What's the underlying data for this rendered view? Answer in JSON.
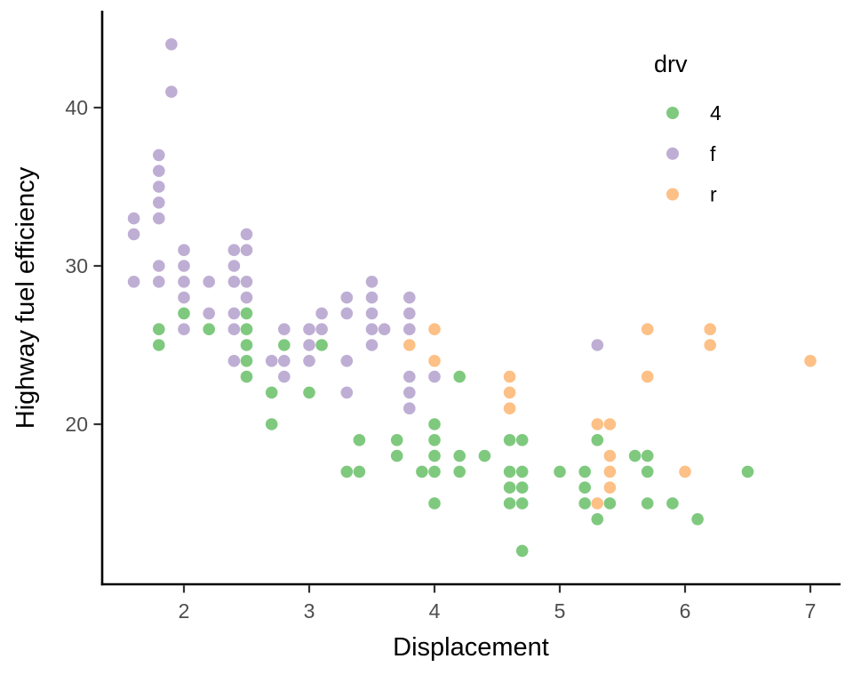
{
  "figure": {
    "background_color": "#ffffff",
    "axis_line_color": "#000000",
    "tick_mark_color": "#333333",
    "tick_label_color": "#4d4d4d",
    "x_axis_label": "Displacement",
    "y_axis_label": "Highway fuel efficiency"
  },
  "legend": {
    "title": "drv",
    "items": [
      {
        "label": "4",
        "color": "#7FC97F"
      },
      {
        "label": "f",
        "color": "#BEAED4"
      },
      {
        "label": "r",
        "color": "#FDC086"
      }
    ]
  },
  "chart_data": {
    "type": "scatter",
    "title": "",
    "xlabel": "Displacement",
    "ylabel": "Highway fuel efficiency",
    "legend_title": "drv",
    "xlim": [
      1.35,
      7.24
    ],
    "ylim": [
      9.9,
      46.0
    ],
    "x_ticks": [
      2,
      3,
      4,
      5,
      6,
      7
    ],
    "y_ticks": [
      20,
      30,
      40
    ],
    "grid": false,
    "legend_position": "top-right-inside",
    "point_color_4": "#7FC97F",
    "point_color_f": "#BEAED4",
    "point_color_r": "#FDC086",
    "series": [
      {
        "name": "f",
        "color": "#BEAED4",
        "points": [
          [
            1.6,
            33
          ],
          [
            1.6,
            32
          ],
          [
            1.6,
            29
          ],
          [
            1.8,
            37
          ],
          [
            1.8,
            36
          ],
          [
            1.8,
            35
          ],
          [
            1.8,
            34
          ],
          [
            1.8,
            33
          ],
          [
            1.8,
            30
          ],
          [
            1.8,
            29
          ],
          [
            1.9,
            44
          ],
          [
            1.9,
            41
          ],
          [
            2.0,
            31
          ],
          [
            2.0,
            30
          ],
          [
            2.0,
            29
          ],
          [
            2.0,
            28
          ],
          [
            2.0,
            26
          ],
          [
            2.2,
            29
          ],
          [
            2.2,
            27
          ],
          [
            2.4,
            31
          ],
          [
            2.4,
            30
          ],
          [
            2.4,
            29
          ],
          [
            2.4,
            27
          ],
          [
            2.4,
            26
          ],
          [
            2.4,
            24
          ],
          [
            2.5,
            32
          ],
          [
            2.5,
            31
          ],
          [
            2.5,
            29
          ],
          [
            2.5,
            28
          ],
          [
            2.7,
            24
          ],
          [
            2.8,
            26
          ],
          [
            2.8,
            24
          ],
          [
            2.8,
            23
          ],
          [
            3.0,
            26
          ],
          [
            3.0,
            25
          ],
          [
            3.0,
            24
          ],
          [
            3.1,
            27
          ],
          [
            3.1,
            26
          ],
          [
            3.3,
            28
          ],
          [
            3.3,
            27
          ],
          [
            3.3,
            24
          ],
          [
            3.3,
            22
          ],
          [
            3.5,
            29
          ],
          [
            3.5,
            28
          ],
          [
            3.5,
            27
          ],
          [
            3.5,
            26
          ],
          [
            3.6,
            26
          ],
          [
            3.5,
            25
          ],
          [
            3.8,
            28
          ],
          [
            3.8,
            27
          ],
          [
            3.8,
            26
          ],
          [
            3.8,
            23
          ],
          [
            3.8,
            22
          ],
          [
            3.8,
            21
          ],
          [
            4.0,
            23
          ],
          [
            5.3,
            25
          ]
        ]
      },
      {
        "name": "4",
        "color": "#7FC97F",
        "points": [
          [
            1.8,
            26
          ],
          [
            1.8,
            25
          ],
          [
            2.0,
            27
          ],
          [
            2.2,
            26
          ],
          [
            2.5,
            27
          ],
          [
            2.5,
            26
          ],
          [
            2.5,
            25
          ],
          [
            2.5,
            24
          ],
          [
            2.5,
            23
          ],
          [
            2.7,
            22
          ],
          [
            2.7,
            20
          ],
          [
            2.8,
            25
          ],
          [
            3.0,
            22
          ],
          [
            3.1,
            25
          ],
          [
            3.3,
            17
          ],
          [
            3.4,
            19
          ],
          [
            3.4,
            17
          ],
          [
            3.7,
            19
          ],
          [
            3.7,
            18
          ],
          [
            3.9,
            17
          ],
          [
            4.0,
            20
          ],
          [
            4.0,
            19
          ],
          [
            4.0,
            18
          ],
          [
            4.0,
            17
          ],
          [
            4.0,
            15
          ],
          [
            4.2,
            23
          ],
          [
            4.2,
            18
          ],
          [
            4.2,
            17
          ],
          [
            4.4,
            18
          ],
          [
            4.6,
            19
          ],
          [
            4.6,
            17
          ],
          [
            4.6,
            16
          ],
          [
            4.6,
            15
          ],
          [
            4.7,
            19
          ],
          [
            4.7,
            17
          ],
          [
            4.7,
            16
          ],
          [
            4.7,
            15
          ],
          [
            4.7,
            12
          ],
          [
            5.0,
            17
          ],
          [
            5.2,
            17
          ],
          [
            5.2,
            16
          ],
          [
            5.2,
            15
          ],
          [
            5.3,
            19
          ],
          [
            5.3,
            14
          ],
          [
            5.4,
            15
          ],
          [
            5.6,
            18
          ],
          [
            5.7,
            18
          ],
          [
            5.7,
            17
          ],
          [
            5.7,
            15
          ],
          [
            5.9,
            15
          ],
          [
            6.1,
            14
          ],
          [
            6.5,
            17
          ]
        ]
      },
      {
        "name": "r",
        "color": "#FDC086",
        "points": [
          [
            3.8,
            25
          ],
          [
            4.0,
            26
          ],
          [
            4.0,
            24
          ],
          [
            4.6,
            23
          ],
          [
            4.6,
            22
          ],
          [
            4.6,
            21
          ],
          [
            5.3,
            20
          ],
          [
            5.4,
            20
          ],
          [
            5.3,
            15
          ],
          [
            5.4,
            18
          ],
          [
            5.4,
            17
          ],
          [
            5.4,
            16
          ],
          [
            5.7,
            26
          ],
          [
            5.7,
            23
          ],
          [
            6.0,
            17
          ],
          [
            6.2,
            26
          ],
          [
            6.2,
            25
          ],
          [
            7.0,
            24
          ]
        ]
      }
    ]
  }
}
